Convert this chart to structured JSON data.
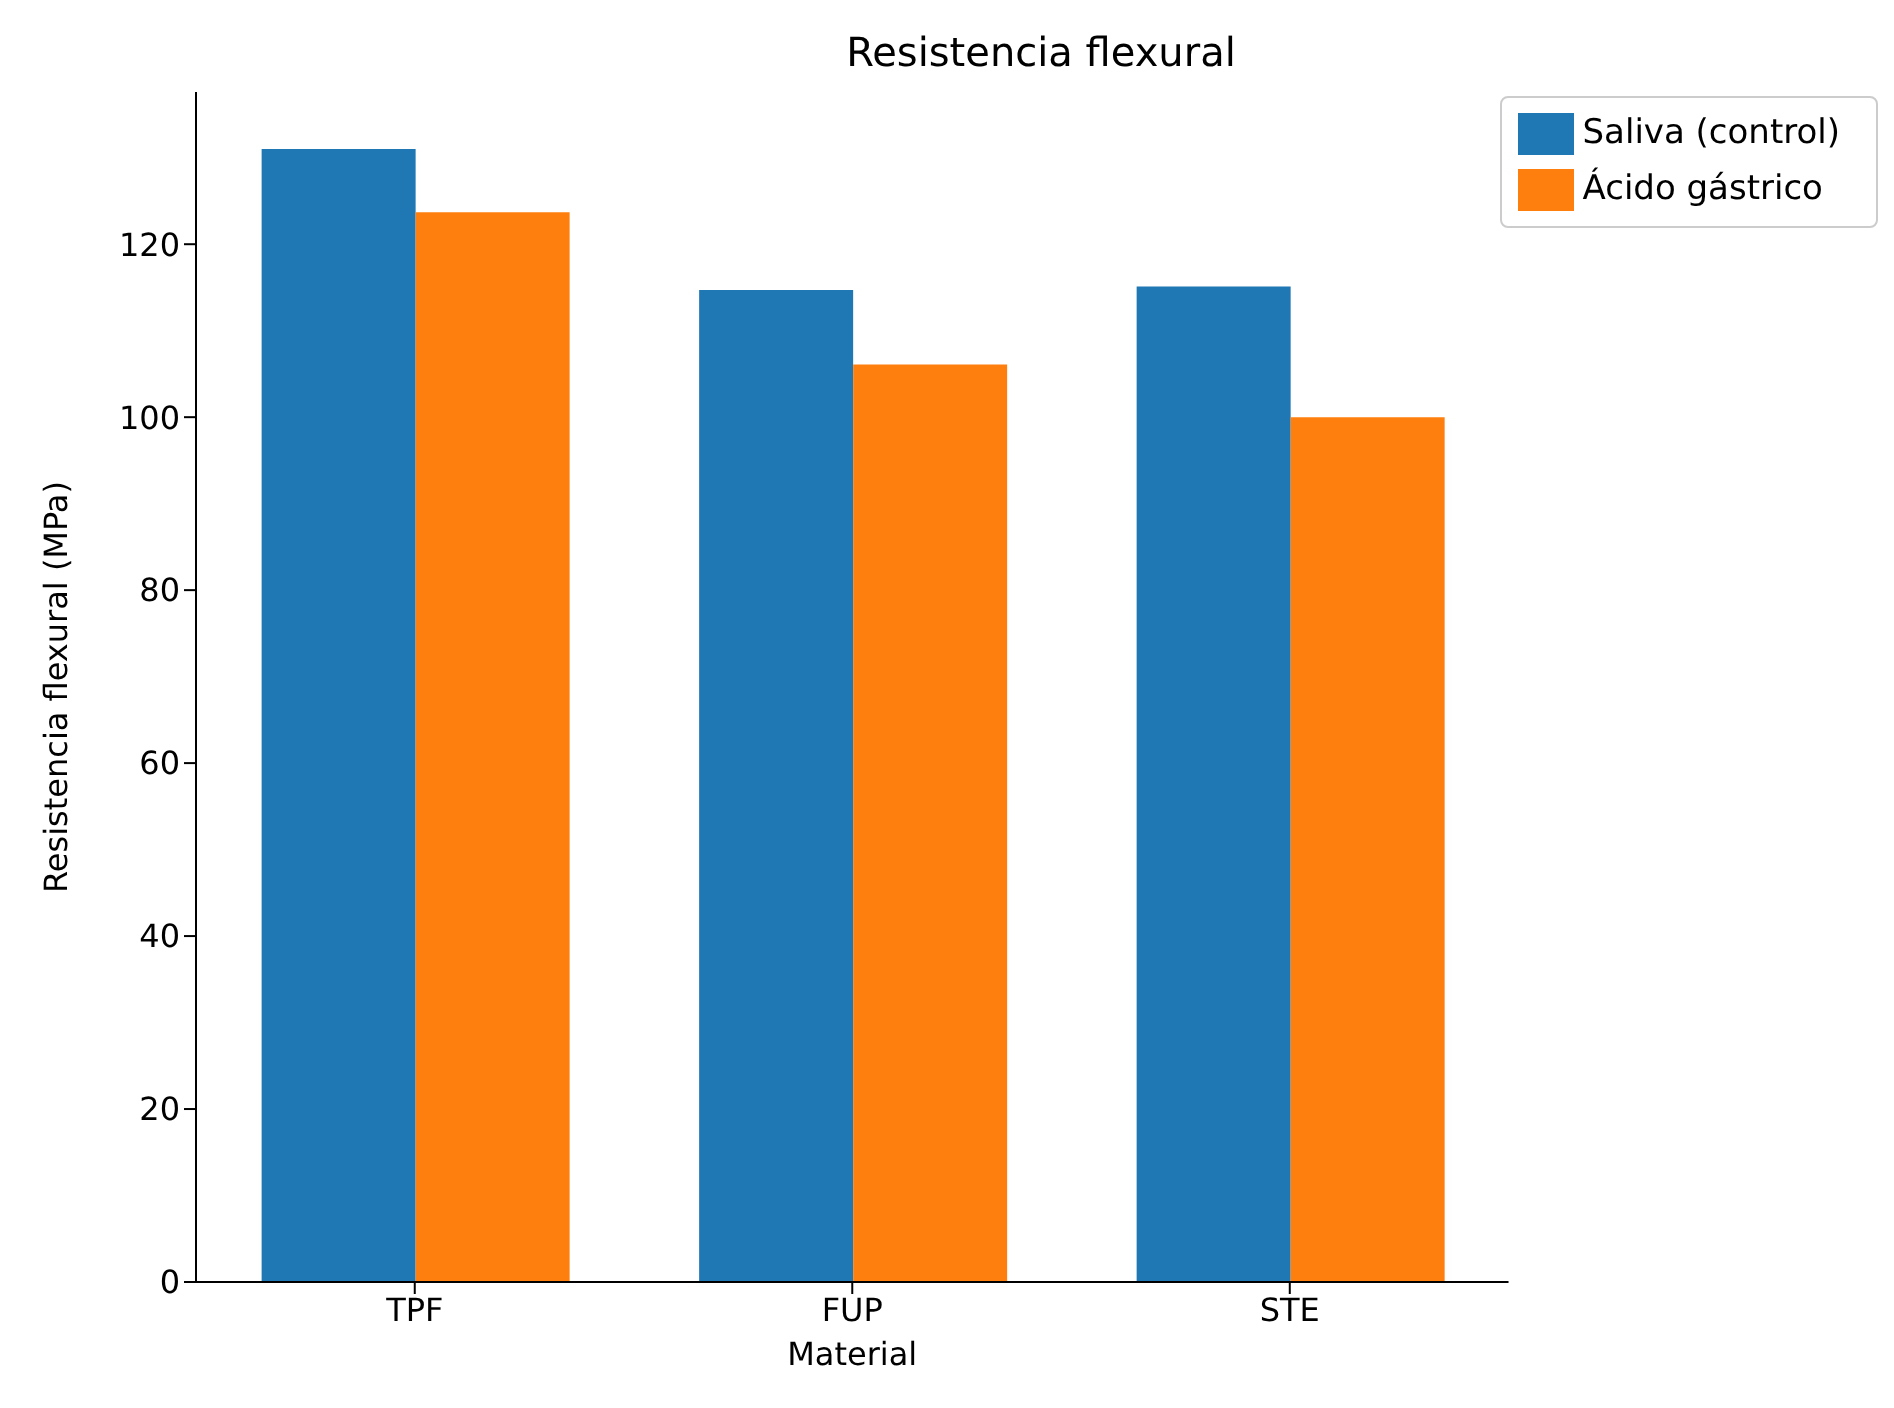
{
  "chart_data": {
    "type": "bar",
    "title": "Resistencia flexural",
    "xlabel": "Material",
    "ylabel": "Resistencia flexural (MPa)",
    "categories": [
      "TPF",
      "FUP",
      "STE"
    ],
    "series": [
      {
        "name": "Saliva (control)",
        "color": "#1f77b4",
        "values": [
          131,
          114.7,
          115.1
        ]
      },
      {
        "name": "Ácido gástrico",
        "color": "#ff7f0e",
        "values": [
          123.7,
          106.1,
          100
        ]
      }
    ],
    "ylim": [
      0,
      137.6
    ],
    "yticks": [
      0,
      20,
      40,
      60,
      80,
      100,
      120
    ],
    "grid": false,
    "legend": "top right"
  }
}
